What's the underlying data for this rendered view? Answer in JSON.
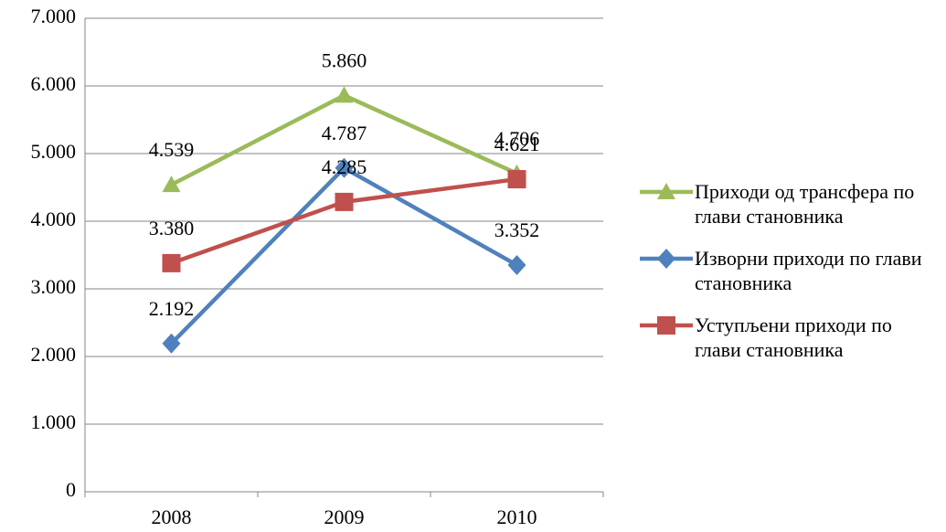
{
  "chart_data": {
    "type": "line",
    "categories": [
      "2008",
      "2009",
      "2010"
    ],
    "series": [
      {
        "name": "Приходи од трансфера по глави становника",
        "color": "#9bbb59",
        "marker": "triangle",
        "values": [
          4539,
          5860,
          4706
        ],
        "value_labels": [
          "4.539",
          "5.860",
          "4.706"
        ]
      },
      {
        "name": "Изворни приходи по глави становника",
        "color": "#4f81bd",
        "marker": "diamond",
        "values": [
          2192,
          4787,
          3352
        ],
        "value_labels": [
          "2.192",
          "4.787",
          "3.352"
        ]
      },
      {
        "name": "Уступљени приходи по глави становника",
        "color": "#c0504d",
        "marker": "square",
        "values": [
          3380,
          4285,
          4621
        ],
        "value_labels": [
          "3.380",
          "4.285",
          "4.621"
        ]
      }
    ],
    "ylim": [
      0,
      7000
    ],
    "yticks": [
      0,
      {
        "value": 1000,
        "label": "1.000"
      },
      {
        "value": 2000,
        "label": "2.000"
      },
      {
        "value": 3000,
        "label": "3.000"
      },
      {
        "value": 4000,
        "label": "4.000"
      },
      {
        "value": 5000,
        "label": "5.000"
      },
      {
        "value": 6000,
        "label": "6.000"
      },
      {
        "value": 7000,
        "label": "7.000"
      }
    ],
    "grid": true,
    "legend": "right"
  }
}
